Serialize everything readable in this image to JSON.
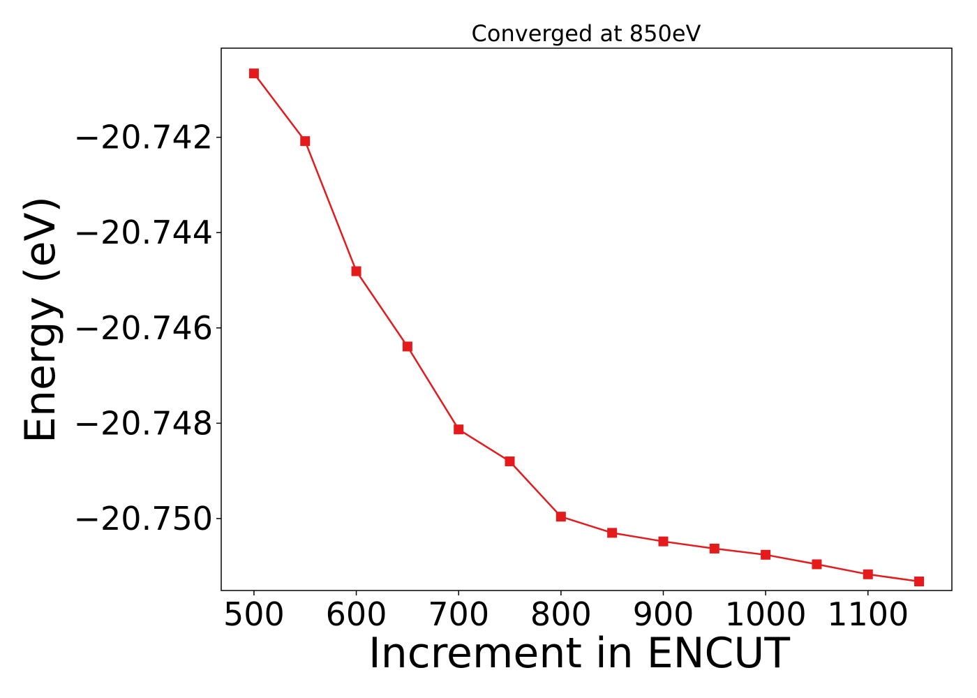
{
  "chart_data": {
    "type": "line",
    "title": "Converged at 850eV",
    "xlabel": "Increment in ENCUT",
    "ylabel": "Energy (eV)",
    "x": [
      500,
      550,
      600,
      650,
      700,
      750,
      800,
      850,
      900,
      950,
      1000,
      1050,
      1100,
      1150
    ],
    "series": [
      {
        "values": [
          -20.74066,
          -20.74208,
          -20.74481,
          -20.74639,
          -20.74813,
          -20.7488,
          -20.74996,
          -20.7503,
          -20.75048,
          -20.75063,
          -20.75076,
          -20.75096,
          -20.75117,
          -20.75132
        ]
      }
    ],
    "xlim": [
      468,
      1182
    ],
    "ylim": [
      -20.75151,
      -20.74013
    ],
    "xticks": [
      500,
      600,
      700,
      800,
      900,
      1000,
      1100
    ],
    "xtick_labels": [
      "500",
      "600",
      "700",
      "800",
      "900",
      "1000",
      "1100"
    ],
    "yticks": [
      -20.742,
      -20.744,
      -20.746,
      -20.748,
      -20.75
    ],
    "ytick_labels": [
      "−20.742",
      "−20.744",
      "−20.746",
      "−20.748",
      "−20.750"
    ],
    "line_color": "#e41a1c",
    "marker": "square",
    "grid": false,
    "legend": false
  }
}
